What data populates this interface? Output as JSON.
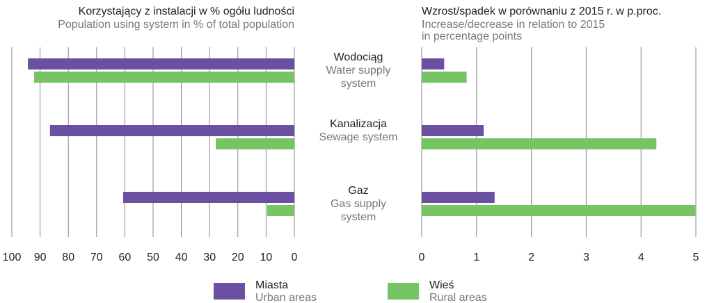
{
  "chart_data": [
    {
      "type": "bar",
      "orientation": "horizontal",
      "title": "Korzystający z instalacji w % ogółu ludności",
      "subtitle": [
        "Population using system in % of total population"
      ],
      "categories": [
        "Wodociąg",
        "Kanalizacja",
        "Gaz"
      ],
      "categories_en": [
        "Water supply system",
        "Sewage system",
        "Gas supply system"
      ],
      "series": [
        {
          "name": "Miasta",
          "name_en": "Urban areas",
          "color": "#6b4fa0",
          "values": [
            94.3,
            86.5,
            60.6
          ]
        },
        {
          "name": "Wieś",
          "name_en": "Rural areas",
          "color": "#77c464",
          "values": [
            92.1,
            27.8,
            9.6
          ]
        }
      ],
      "xlim": [
        100,
        0
      ],
      "xticks": [
        100,
        90,
        80,
        70,
        60,
        50,
        40,
        30,
        20,
        10,
        0
      ],
      "grid": true
    },
    {
      "type": "bar",
      "orientation": "horizontal",
      "title": "Wzrost/spadek w porównaniu z 2015 r. w p.proc.",
      "subtitle": [
        "Increase/decrease in relation to 2015",
        "in percentage points"
      ],
      "series": [
        {
          "color": "#6b4fa0",
          "values": [
            0.41,
            1.13,
            1.33
          ]
        },
        {
          "color": "#77c464",
          "values": [
            0.82,
            4.28,
            4.99
          ]
        }
      ],
      "xlim": [
        0,
        5
      ],
      "xticks": [
        0,
        1,
        2,
        3,
        4,
        5
      ],
      "grid": true
    }
  ]
}
